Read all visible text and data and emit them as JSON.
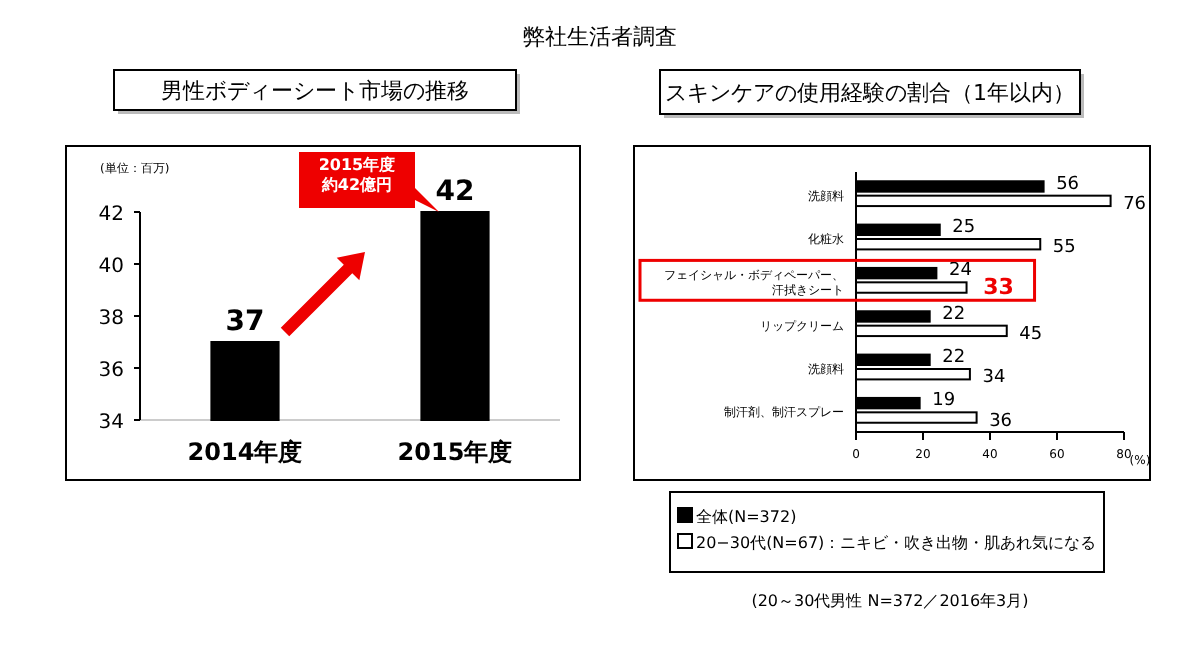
{
  "chart_data": [
    {
      "type": "bar",
      "title": "男性ボディーシート市場の推移",
      "ylabel": "(単位：百万)",
      "categories": [
        "2014年度",
        "2015年度"
      ],
      "values": [
        37,
        42
      ],
      "color": "#000000",
      "ylim": [
        34,
        42
      ],
      "yticks": [
        34,
        36,
        38,
        40,
        42
      ],
      "data_labels": true,
      "grid": false,
      "annotations": [
        "弊社生活者調査",
        "2015年度約42億円"
      ]
    },
    {
      "type": "bar",
      "orientation": "horizontal",
      "title": "スキンケアの使用経験の割合（1年以内）",
      "xlabel": "(%)",
      "categories": [
        "洗顔料",
        "化粧水",
        "フェイシャル・ボディペーパー、汗拭きシート",
        "リップクリーム",
        "洗顔料",
        "制汗剤、制汗スプレー"
      ],
      "series": [
        {
          "name": "全体(N=372)",
          "color": "#000000",
          "values": [
            56,
            25,
            24,
            22,
            22,
            19
          ]
        },
        {
          "name": "20−30代(N=67)：ニキビ・吹き出物・肌あれ気になる",
          "color": "#ffffff",
          "values": [
            76,
            55,
            33,
            45,
            34,
            36
          ],
          "value_labels": [
            "76",
            "55",
            null,
            "45",
            "34",
            "36"
          ]
        }
      ],
      "xlim": [
        0,
        80
      ],
      "xticks": [
        0,
        20,
        40,
        60,
        80
      ],
      "data_labels": true,
      "grid": false,
      "legend": "bottom",
      "annotations": [
        {
          "text": "33",
          "x": 33,
          "y": "フェイシャル・ボディペーパー、汗拭きシート"
        },
        "(20～30代男性 N=372／2016年3月)"
      ]
    }
  ]
}
